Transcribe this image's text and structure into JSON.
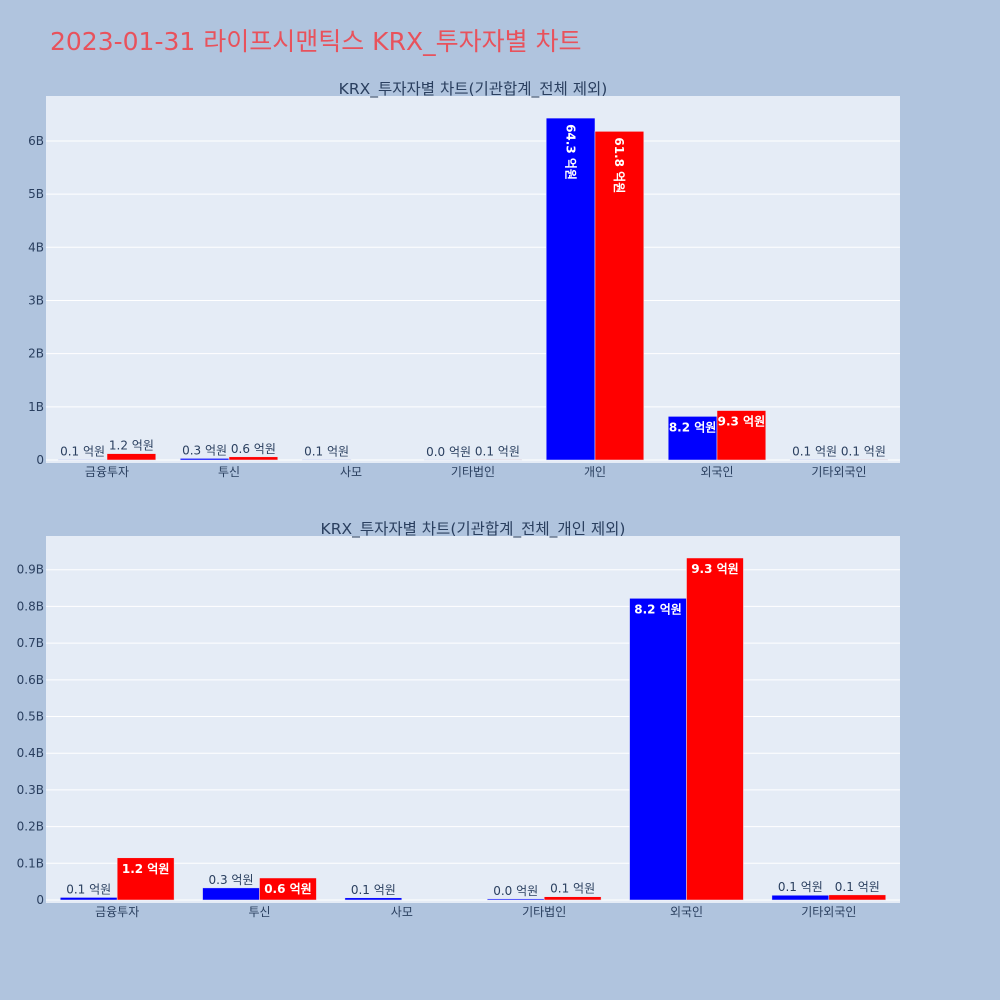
{
  "page": {
    "title": "2023-01-31 라이프시맨틱스 KRX_투자자별 차트"
  },
  "colors": {
    "background": "#b0c4de",
    "plot_bg": "#e5ecf6",
    "series_a": "#0000ff",
    "series_b": "#ff0000",
    "title": "#e8525c"
  },
  "chart_data": [
    {
      "type": "bar",
      "title": "KRX_투자자별 차트(기관합계_전체 제외)",
      "categories": [
        "금융투자",
        "투신",
        "사모",
        "기타법인",
        "개인",
        "외국인",
        "기타외국인"
      ],
      "series": [
        {
          "color": "#0000ff",
          "values": [
            10000000,
            30000000,
            10000000,
            4000000,
            6430000000,
            820000000,
            10000000
          ],
          "labels": [
            "0.1 억원",
            "0.3 억원",
            "0.1 억원",
            "0.0 억원",
            "64.3 억원",
            "8.2 억원",
            "0.1 억원"
          ]
        },
        {
          "color": "#ff0000",
          "values": [
            120000000,
            60000000,
            0,
            10000000,
            6180000000,
            930000000,
            10000000
          ],
          "labels": [
            "1.2 억원",
            "0.6 억원",
            "",
            "0.1 억원",
            "61.8 억원",
            "9.3 억원",
            "0.1 억원"
          ]
        }
      ],
      "yticks": [
        0,
        1000000000,
        2000000000,
        3000000000,
        4000000000,
        5000000000,
        6000000000
      ],
      "ytick_labels": [
        "0",
        "1B",
        "2B",
        "3B",
        "4B",
        "5B",
        "6B"
      ],
      "ylim": [
        0,
        6770000000
      ],
      "grid": true,
      "legend": "none"
    },
    {
      "type": "bar",
      "title": "KRX_투자자별 차트(기관합계_전체_개인 제외)",
      "categories": [
        "금융투자",
        "투신",
        "사모",
        "기타법인",
        "외국인",
        "기타외국인"
      ],
      "series": [
        {
          "color": "#0000ff",
          "values": [
            7000000,
            33000000,
            6000000,
            3000000,
            822000000,
            13000000
          ],
          "labels": [
            "0.1 억원",
            "0.3 억원",
            "0.1 억원",
            "0.0 억원",
            "8.2 억원",
            "0.1 억원"
          ]
        },
        {
          "color": "#ff0000",
          "values": [
            115000000,
            60000000,
            0,
            9000000,
            932000000,
            14000000
          ],
          "labels": [
            "1.2 억원",
            "0.6 억원",
            "",
            "0.1 억원",
            "9.3 억원",
            "0.1 억원"
          ]
        }
      ],
      "yticks": [
        0,
        100000000,
        200000000,
        300000000,
        400000000,
        500000000,
        600000000,
        700000000,
        800000000,
        900000000
      ],
      "ytick_labels": [
        "0",
        "0.1B",
        "0.2B",
        "0.3B",
        "0.4B",
        "0.5B",
        "0.6B",
        "0.7B",
        "0.8B",
        "0.9B"
      ],
      "ylim": [
        0,
        981000000
      ],
      "grid": true,
      "legend": "none"
    }
  ]
}
